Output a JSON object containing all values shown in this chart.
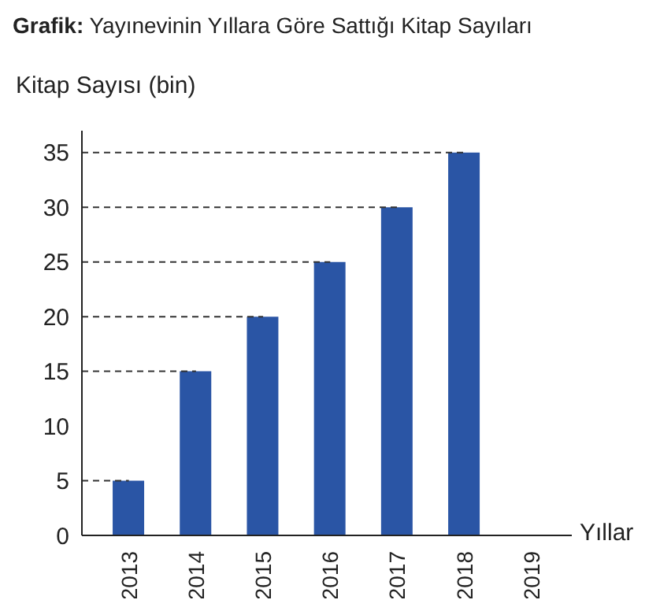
{
  "chart_data": {
    "type": "bar",
    "title": "Grafik: Yayınevinin Yıllara Göre Sattığı Kitap Sayıları",
    "ylabel": "Kitap Sayısı (bin)",
    "xlabel": "Yıllar",
    "categories": [
      "2013",
      "2014",
      "2015",
      "2016",
      "2017",
      "2018",
      "2019"
    ],
    "values": [
      5,
      15,
      20,
      25,
      30,
      35,
      null
    ],
    "color": "#2a55a5",
    "ylim": [
      0,
      37
    ],
    "yticks": [
      0,
      5,
      10,
      15,
      20,
      25,
      30,
      35
    ],
    "grid": false,
    "ref_lines": [
      {
        "axis": "y",
        "value": 5,
        "line_style": "dashed",
        "color": "#333333"
      },
      {
        "axis": "y",
        "value": 15,
        "line_style": "dashed",
        "color": "#333333"
      },
      {
        "axis": "y",
        "value": 20,
        "line_style": "dashed",
        "color": "#333333"
      },
      {
        "axis": "y",
        "value": 25,
        "line_style": "dashed",
        "color": "#333333"
      },
      {
        "axis": "y",
        "value": 30,
        "line_style": "dashed",
        "color": "#333333"
      },
      {
        "axis": "y",
        "value": 35,
        "line_style": "dashed",
        "color": "#333333"
      }
    ]
  }
}
